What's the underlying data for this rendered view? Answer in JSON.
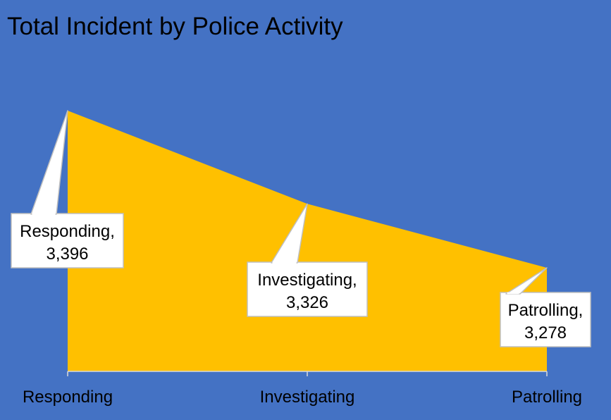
{
  "chart_data": {
    "type": "area",
    "title": "Total Incident by Police Activity",
    "categories": [
      "Responding",
      "Investigating",
      "Patrolling"
    ],
    "values": [
      3396,
      3326,
      3278
    ],
    "data_labels": [
      {
        "line1": "Responding,",
        "line2": "3,396"
      },
      {
        "line1": "Investigating,",
        "line2": "3,326"
      },
      {
        "line1": "Patrolling,",
        "line2": "3,278"
      }
    ],
    "colors": {
      "background": "#4472C4",
      "area": "#FFC000",
      "callout": "#FFFFFF"
    },
    "grid": false,
    "legend": "none"
  }
}
